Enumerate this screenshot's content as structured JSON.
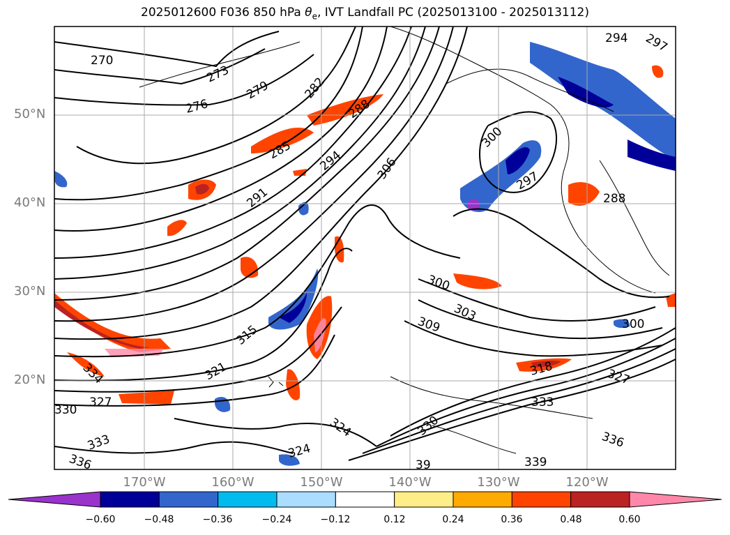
{
  "title": {
    "prefix": "2025012600 F036 850 hPa ",
    "theta_symbol": "θ",
    "theta_sub": "e",
    "suffix": ", IVT Landfall PC (2025013100 - 2025013112)"
  },
  "axes": {
    "lat_labels": [
      "50°N",
      "40°N",
      "30°N",
      "20°N"
    ],
    "lon_labels": [
      "170°W",
      "160°W",
      "150°W",
      "140°W",
      "130°W",
      "120°W"
    ]
  },
  "colorbar": {
    "colors": [
      "#9933cc",
      "#000099",
      "#3366cc",
      "#00bbee",
      "#aaddff",
      "#ffffff",
      "#ffee88",
      "#ffaa00",
      "#ff4400",
      "#bb2222",
      "#ff88aa"
    ],
    "tick_labels": [
      "−0.60",
      "−0.48",
      "−0.36",
      "−0.24",
      "−0.12",
      "0.12",
      "0.24",
      "0.36",
      "0.48",
      "0.60"
    ]
  },
  "contour_labels": [
    "270",
    "273",
    "276",
    "279",
    "282",
    "285",
    "288",
    "291",
    "294",
    "306",
    "300",
    "297",
    "288",
    "294",
    "297",
    "300",
    "303",
    "309",
    "315",
    "321",
    "324",
    "327",
    "330",
    "333",
    "336",
    "324",
    "339",
    "336",
    "333",
    "330",
    "327",
    "318",
    "300",
    "334",
    "39"
  ]
}
